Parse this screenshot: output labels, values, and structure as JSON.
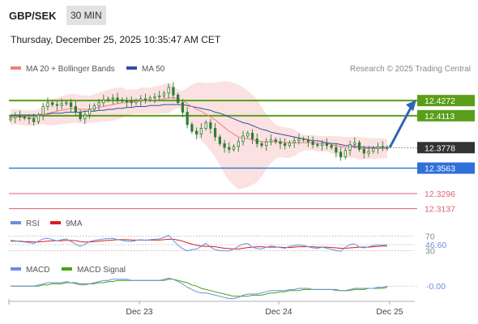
{
  "header": {
    "pair": "GBP/SEK",
    "timeframe": "30 MIN",
    "timestamp": "Thursday, December 25, 2025 10:35:47 AM CET"
  },
  "legend": {
    "ma20": "MA 20 + Bollinger Bands",
    "ma50": "MA 50",
    "credit": "Research © 2025 Trading Central",
    "rsi": "RSI",
    "rsi_ma": "9MA",
    "macd": "MACD",
    "macd_signal": "MACD Signal"
  },
  "colors": {
    "candle": "#2e7d32",
    "ma20": "#f08080",
    "ma50": "#3050a0",
    "bb_fill": "#fbdede",
    "resistance": "#5a9e1a",
    "support": "#2f6fd8",
    "red_level": "#e06070",
    "arrow": "#2f67b5",
    "rsi": "#6a8fdc",
    "rsi_ma": "#d81e1e",
    "macd": "#6a8fdc",
    "macd_signal": "#4aa010",
    "price_tag": "#333333"
  },
  "chart_data": [
    {
      "type": "line",
      "title": "GBP/SEK 30 MIN",
      "x_tick_labels": [
        "Dec 23",
        "Dec 24",
        "Dec 25"
      ],
      "levels": [
        {
          "label": "12.4272",
          "value": 12.4272,
          "kind": "resistance"
        },
        {
          "label": "12.4113",
          "value": 12.4113,
          "kind": "resistance"
        },
        {
          "label": "12.3778",
          "value": 12.3778,
          "kind": "last"
        },
        {
          "label": "12.3563",
          "value": 12.3563,
          "kind": "support"
        },
        {
          "label": "12.3296",
          "value": 12.3296,
          "kind": "target"
        },
        {
          "label": "12.3137",
          "value": 12.3137,
          "kind": "target"
        }
      ],
      "series": [
        {
          "name": "Price",
          "values": [
            12.409,
            12.411,
            12.41,
            12.409,
            12.408,
            12.405,
            12.412,
            12.421,
            12.425,
            12.423,
            12.422,
            12.424,
            12.425,
            12.421,
            12.415,
            12.408,
            12.412,
            12.418,
            12.422,
            12.425,
            12.428,
            12.429,
            12.43,
            12.428,
            12.427,
            12.426,
            12.425,
            12.427,
            12.429,
            12.428,
            12.43,
            12.431,
            12.432,
            12.435,
            12.441,
            12.433,
            12.425,
            12.415,
            12.402,
            12.395,
            12.392,
            12.398,
            12.404,
            12.398,
            12.389,
            12.382,
            12.378,
            12.376,
            12.379,
            12.384,
            12.39,
            12.393,
            12.387,
            12.382,
            12.38,
            12.384,
            12.386,
            12.384,
            12.382,
            12.38,
            12.383,
            12.385,
            12.387,
            12.386,
            12.384,
            12.381,
            12.38,
            12.382,
            12.38,
            12.378,
            12.373,
            12.368,
            12.375,
            12.381,
            12.383,
            12.376,
            12.372,
            12.374,
            12.377,
            12.379,
            12.378,
            12.377
          ]
        },
        {
          "name": "MA 20",
          "values": [
            12.41,
            12.41,
            12.41,
            12.409,
            12.409,
            12.409,
            12.41,
            12.412,
            12.414,
            12.415,
            12.416,
            12.417,
            12.418,
            12.419,
            12.419,
            12.418,
            12.418,
            12.418,
            12.419,
            12.42,
            12.421,
            12.422,
            12.423,
            12.424,
            12.425,
            12.425,
            12.426,
            12.426,
            12.427,
            12.427,
            12.427,
            12.428,
            12.428,
            12.429,
            12.43,
            12.43,
            12.429,
            12.427,
            12.424,
            12.421,
            12.418,
            12.416,
            12.413,
            12.41,
            12.407,
            12.403,
            12.399,
            12.395,
            12.392,
            12.389,
            12.388,
            12.387,
            12.386,
            12.385,
            12.384,
            12.384,
            12.384,
            12.384,
            12.384,
            12.383,
            12.383,
            12.383,
            12.383,
            12.383,
            12.383,
            12.383,
            12.382,
            12.382,
            12.382,
            12.381,
            12.38,
            12.379,
            12.378,
            12.378,
            12.378,
            12.377,
            12.377,
            12.377,
            12.377,
            12.377,
            12.377,
            12.377
          ]
        },
        {
          "name": "MA 50",
          "values": [
            12.412,
            12.412,
            12.412,
            12.412,
            12.412,
            12.412,
            12.412,
            12.413,
            12.413,
            12.414,
            12.414,
            12.414,
            12.415,
            12.415,
            12.415,
            12.415,
            12.416,
            12.416,
            12.416,
            12.417,
            12.417,
            12.418,
            12.418,
            12.419,
            12.419,
            12.42,
            12.42,
            12.421,
            12.421,
            12.421,
            12.422,
            12.422,
            12.422,
            12.423,
            12.423,
            12.423,
            12.423,
            12.423,
            12.422,
            12.421,
            12.42,
            12.419,
            12.418,
            12.417,
            12.415,
            12.414,
            12.412,
            12.41,
            12.408,
            12.406,
            12.404,
            12.403,
            12.401,
            12.399,
            12.397,
            12.396,
            12.394,
            12.393,
            12.392,
            12.391,
            12.39,
            12.389,
            12.388,
            12.387,
            12.386,
            12.385,
            12.385,
            12.384,
            12.383,
            12.382,
            12.382,
            12.381,
            12.38,
            12.38,
            12.379,
            12.379,
            12.378,
            12.378,
            12.378,
            12.378,
            12.378,
            12.378
          ]
        }
      ]
    },
    {
      "type": "line",
      "levels": [
        {
          "label": "70",
          "value": 70
        },
        {
          "label": "46.60",
          "value": 46.6,
          "kind": "last"
        },
        {
          "label": "30",
          "value": 30
        }
      ],
      "series": [
        {
          "name": "RSI",
          "values": [
            58,
            57,
            55,
            54,
            52,
            50,
            56,
            62,
            64,
            60,
            57,
            60,
            62,
            55,
            48,
            42,
            48,
            55,
            58,
            60,
            62,
            63,
            64,
            60,
            58,
            56,
            55,
            58,
            60,
            58,
            60,
            61,
            62,
            66,
            72,
            58,
            45,
            36,
            30,
            33,
            35,
            42,
            50,
            40,
            33,
            31,
            30,
            30,
            35,
            42,
            48,
            50,
            40,
            36,
            35,
            40,
            43,
            41,
            39,
            37,
            42,
            44,
            46,
            44,
            41,
            38,
            37,
            40,
            37,
            34,
            31,
            29,
            40,
            47,
            49,
            40,
            38,
            41,
            44,
            46,
            45,
            46.6
          ]
        },
        {
          "name": "9MA",
          "values": [
            56,
            56,
            56,
            55,
            55,
            54,
            54,
            55,
            56,
            57,
            57,
            57,
            58,
            58,
            57,
            55,
            54,
            54,
            55,
            56,
            57,
            58,
            59,
            60,
            60,
            60,
            59,
            59,
            59,
            59,
            59,
            59,
            59,
            60,
            61,
            61,
            59,
            56,
            52,
            48,
            45,
            43,
            42,
            42,
            41,
            39,
            37,
            36,
            35,
            35,
            37,
            39,
            40,
            41,
            41,
            40,
            40,
            40,
            40,
            39,
            39,
            40,
            41,
            41,
            41,
            41,
            40,
            40,
            40,
            39,
            38,
            37,
            37,
            38,
            39,
            40,
            40,
            40,
            41,
            42,
            43,
            43
          ]
        }
      ]
    },
    {
      "type": "line",
      "levels": [
        {
          "label": "-0.00",
          "value": 0.0,
          "kind": "last"
        }
      ],
      "series": [
        {
          "name": "MACD",
          "values": [
            0.0,
            0.0,
            0.0,
            0.0,
            0.0,
            0.0,
            0.001,
            0.002,
            0.003,
            0.003,
            0.003,
            0.003,
            0.004,
            0.003,
            0.002,
            0.001,
            0.001,
            0.002,
            0.003,
            0.004,
            0.005,
            0.005,
            0.006,
            0.006,
            0.006,
            0.006,
            0.005,
            0.005,
            0.005,
            0.005,
            0.005,
            0.005,
            0.005,
            0.006,
            0.007,
            0.006,
            0.004,
            0.002,
            -0.001,
            -0.003,
            -0.005,
            -0.006,
            -0.006,
            -0.007,
            -0.008,
            -0.009,
            -0.01,
            -0.011,
            -0.011,
            -0.01,
            -0.008,
            -0.007,
            -0.007,
            -0.007,
            -0.006,
            -0.005,
            -0.004,
            -0.004,
            -0.004,
            -0.004,
            -0.003,
            -0.003,
            -0.002,
            -0.002,
            -0.002,
            -0.003,
            -0.003,
            -0.003,
            -0.003,
            -0.003,
            -0.004,
            -0.004,
            -0.004,
            -0.003,
            -0.002,
            -0.002,
            -0.002,
            -0.002,
            -0.002,
            -0.001,
            -0.001,
            0.0
          ]
        },
        {
          "name": "MACD Signal",
          "values": [
            0.0,
            0.0,
            0.0,
            0.0,
            0.0,
            0.0,
            0.0,
            0.001,
            0.001,
            0.002,
            0.002,
            0.002,
            0.003,
            0.003,
            0.003,
            0.002,
            0.002,
            0.002,
            0.002,
            0.003,
            0.003,
            0.004,
            0.004,
            0.005,
            0.005,
            0.005,
            0.005,
            0.005,
            0.005,
            0.005,
            0.005,
            0.005,
            0.005,
            0.005,
            0.006,
            0.006,
            0.005,
            0.004,
            0.003,
            0.001,
            0.0,
            -0.002,
            -0.003,
            -0.004,
            -0.005,
            -0.006,
            -0.007,
            -0.008,
            -0.009,
            -0.009,
            -0.009,
            -0.009,
            -0.008,
            -0.008,
            -0.008,
            -0.007,
            -0.006,
            -0.006,
            -0.005,
            -0.005,
            -0.004,
            -0.004,
            -0.004,
            -0.003,
            -0.003,
            -0.003,
            -0.003,
            -0.003,
            -0.003,
            -0.003,
            -0.003,
            -0.004,
            -0.004,
            -0.004,
            -0.003,
            -0.003,
            -0.003,
            -0.002,
            -0.002,
            -0.002,
            -0.002,
            -0.001
          ]
        }
      ]
    }
  ]
}
